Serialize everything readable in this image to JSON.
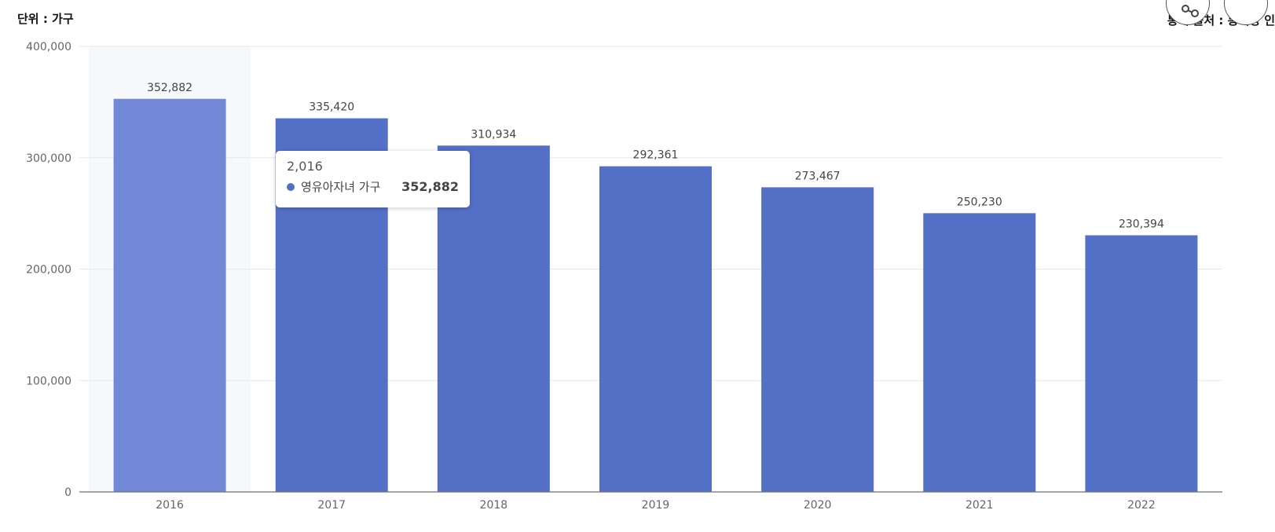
{
  "header": {
    "unit_label": "단위 : 가구",
    "source_label": "통계 출처 : 통계청 인"
  },
  "icons": {
    "share": "share-icon"
  },
  "colors": {
    "bar": "#5470c6",
    "bar_highlight": "#7189d6",
    "hover_band": "#f6f8fc",
    "grid": "#e6e8ee",
    "axis": "#6e7079"
  },
  "tooltip": {
    "title": "2,016",
    "series_name": "영유아자녀 가구",
    "value": "352,882"
  },
  "chart_data": {
    "type": "bar",
    "categories": [
      "2016",
      "2017",
      "2018",
      "2019",
      "2020",
      "2021",
      "2022"
    ],
    "series": [
      {
        "name": "영유아자녀 가구",
        "values": [
          352882,
          335420,
          310934,
          292361,
          273467,
          250230,
          230394
        ]
      }
    ],
    "value_labels": [
      "352,882",
      "335,420",
      "310,934",
      "292,361",
      "273,467",
      "250,230",
      "230,394"
    ],
    "ylim": [
      0,
      400000
    ],
    "yticks": [
      0,
      100000,
      200000,
      300000,
      400000
    ],
    "ytick_labels": [
      "0",
      "100,000",
      "200,000",
      "300,000",
      "400,000"
    ],
    "highlighted_category": "2016",
    "grid": true
  }
}
